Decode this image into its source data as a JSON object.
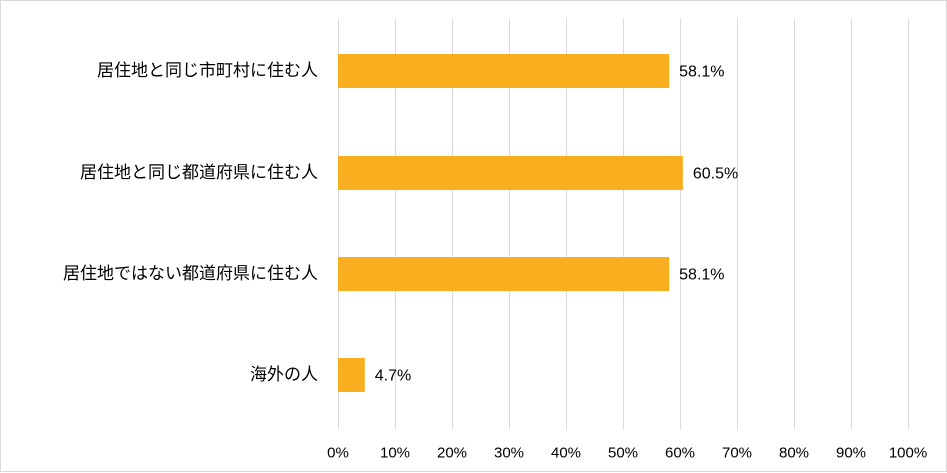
{
  "chart_data": {
    "type": "bar",
    "orientation": "horizontal",
    "title": "",
    "xlabel": "",
    "ylabel": "",
    "categories": [
      "居住地と同じ市町村に住む人",
      "居住地と同じ都道府県に住む人",
      "居住地ではない都道府県に住む人",
      "海外の人"
    ],
    "values": [
      58.1,
      60.5,
      58.1,
      4.7
    ],
    "value_labels": [
      "58.1%",
      "60.5%",
      "58.1%",
      "4.7%"
    ],
    "xlim": [
      0,
      100
    ],
    "ticks": [
      0,
      10,
      20,
      30,
      40,
      50,
      60,
      70,
      80,
      90,
      100
    ],
    "tick_labels": [
      "0%",
      "10%",
      "20%",
      "30%",
      "40%",
      "50%",
      "60%",
      "70%",
      "80%",
      "90%",
      "100%"
    ],
    "grid": true,
    "legend": "none",
    "bar_color": "#F9AE1F",
    "grid_color": "#D9D9D9"
  }
}
